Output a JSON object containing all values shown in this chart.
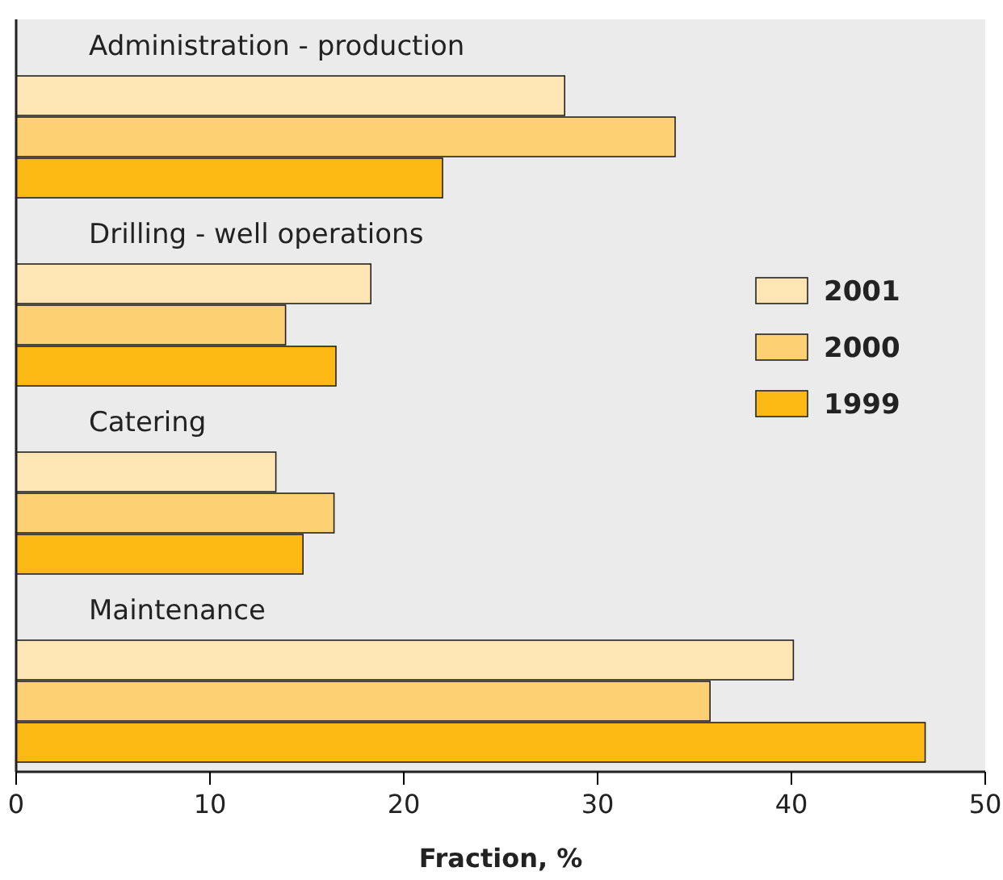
{
  "chart_data": {
    "type": "bar",
    "orientation": "horizontal",
    "xlabel": "Fraction, %",
    "categories": [
      "Administration - production",
      "Drilling - well operations",
      "Catering",
      "Maintenance"
    ],
    "series": [
      {
        "name": "2001",
        "color": "#fde5b4",
        "values": [
          28.3,
          18.3,
          13.4,
          40.1
        ]
      },
      {
        "name": "2000",
        "color": "#fdd073",
        "values": [
          34.0,
          13.9,
          16.4,
          35.8
        ]
      },
      {
        "name": "1999",
        "color": "#fdb913",
        "values": [
          22.0,
          16.5,
          14.8,
          46.9
        ]
      }
    ],
    "xlim": [
      0,
      50
    ],
    "xticks": [
      0,
      10,
      20,
      30,
      40,
      50
    ],
    "grid": false,
    "legend": "right"
  }
}
